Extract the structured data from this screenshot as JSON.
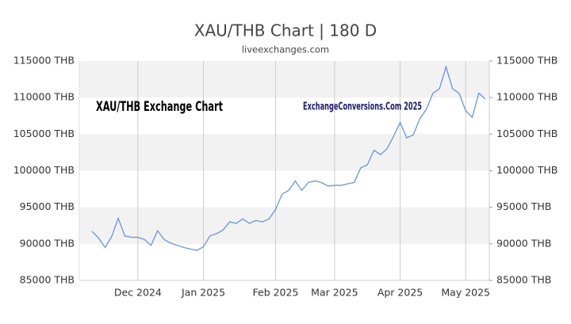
{
  "chart_data": {
    "type": "line",
    "title": "XAU/THB Chart | 180 D",
    "subtitle": "liveexchanges.com",
    "annotations": [
      "XAU/THB Exchange Chart",
      "ExchangeConversions.Com 2025"
    ],
    "categories": [
      null,
      null,
      null,
      null,
      null,
      null,
      null,
      "Dec 2024",
      null,
      null,
      null,
      null,
      null,
      null,
      null,
      null,
      null,
      "Jan 2025",
      null,
      null,
      null,
      null,
      null,
      null,
      null,
      null,
      null,
      null,
      "Feb 2025",
      null,
      null,
      null,
      null,
      null,
      null,
      null,
      null,
      "Mar 2025",
      null,
      null,
      null,
      null,
      null,
      null,
      null,
      null,
      null,
      "Apr 2025",
      null,
      null,
      null,
      null,
      null,
      null,
      null,
      null,
      null,
      "May 2025",
      null,
      null,
      null
    ],
    "values": [
      91700,
      90800,
      89500,
      91000,
      93500,
      91100,
      90900,
      90900,
      90600,
      89800,
      91800,
      90600,
      90100,
      89800,
      89500,
      89300,
      89100,
      89600,
      91100,
      91400,
      91900,
      93000,
      92800,
      93400,
      92800,
      93200,
      93000,
      93400,
      94700,
      96800,
      97300,
      98600,
      97300,
      98400,
      98600,
      98400,
      97900,
      98000,
      98000,
      98200,
      98400,
      100400,
      100800,
      102800,
      102200,
      103000,
      104700,
      106600,
      104500,
      104900,
      107100,
      108400,
      110600,
      111200,
      114200,
      111200,
      110600,
      108200,
      107300,
      110600,
      109800
    ],
    "color": "#5b8ee0",
    "ylim": [
      85000,
      115000
    ],
    "yticks": [
      {
        "value": 85000,
        "label": "85000 THB"
      },
      {
        "value": 90000,
        "label": "90000 THB"
      },
      {
        "value": 95000,
        "label": "95000 THB"
      },
      {
        "value": 100000,
        "label": "100000 THB"
      },
      {
        "value": 105000,
        "label": "105000 THB"
      },
      {
        "value": 110000,
        "label": "110000 THB"
      },
      {
        "value": 115000,
        "label": "115000 THB"
      }
    ],
    "grid": true
  }
}
